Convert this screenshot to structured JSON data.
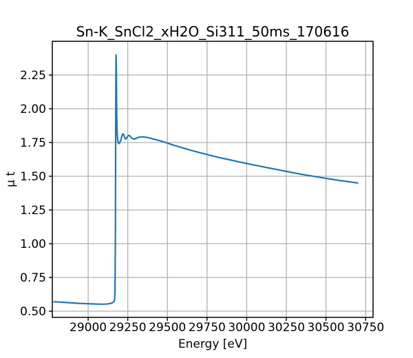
{
  "figure": {
    "background": "#ffffff"
  },
  "chart_data": {
    "type": "line",
    "title": "Sn-K_SnCl2_xH2O_Si311_50ms_170616",
    "xlabel": "Energy [eV]",
    "ylabel": "μ t",
    "xlim": [
      28774,
      30797
    ],
    "ylim": [
      0.454,
      2.5
    ],
    "xticks": [
      29000,
      29250,
      29500,
      29750,
      30000,
      30250,
      30500,
      30750
    ],
    "xtick_labels": [
      "29000",
      "29250",
      "29500",
      "29750",
      "30000",
      "30250",
      "30500",
      "30750"
    ],
    "ytick_values": [
      0.5,
      0.75,
      1.0,
      1.25,
      1.5,
      1.75,
      2.0,
      2.25
    ],
    "ytick_labels": [
      "0.50",
      "0.75",
      "1.00",
      "1.25",
      "1.50",
      "1.75",
      "2.00",
      "2.25"
    ],
    "grid": true,
    "legend": false,
    "line_color": "#1f77b4",
    "grid_color": "#b0b0b0",
    "axis_color": "#000000",
    "text_color": "#000000",
    "series": [
      {
        "points": [
          [
            28785,
            0.57
          ],
          [
            28860,
            0.564
          ],
          [
            28940,
            0.558
          ],
          [
            29020,
            0.554
          ],
          [
            29080,
            0.552
          ],
          [
            29115,
            0.5525
          ],
          [
            29140,
            0.557
          ],
          [
            29155,
            0.563
          ],
          [
            29163,
            0.572
          ],
          [
            29167,
            0.585
          ],
          [
            29169,
            0.64
          ],
          [
            29170,
            0.72
          ],
          [
            29171,
            0.86
          ],
          [
            29172,
            1.1
          ],
          [
            29173,
            1.5
          ],
          [
            29174,
            1.95
          ],
          [
            29175,
            2.25
          ],
          [
            29176,
            2.4
          ],
          [
            29177,
            2.37
          ],
          [
            29178,
            2.22
          ],
          [
            29180,
            1.98
          ],
          [
            29182,
            1.85
          ],
          [
            29185,
            1.78
          ],
          [
            29189,
            1.75
          ],
          [
            29194,
            1.742
          ],
          [
            29200,
            1.75
          ],
          [
            29207,
            1.77
          ],
          [
            29213,
            1.798
          ],
          [
            29219,
            1.815
          ],
          [
            29225,
            1.806
          ],
          [
            29230,
            1.787
          ],
          [
            29235,
            1.776
          ],
          [
            29241,
            1.78
          ],
          [
            29248,
            1.794
          ],
          [
            29255,
            1.803
          ],
          [
            29262,
            1.8
          ],
          [
            29271,
            1.787
          ],
          [
            29282,
            1.777
          ],
          [
            29294,
            1.776
          ],
          [
            29307,
            1.783
          ],
          [
            29322,
            1.79
          ],
          [
            29340,
            1.792
          ],
          [
            29360,
            1.79
          ],
          [
            29385,
            1.784
          ],
          [
            29412,
            1.776
          ],
          [
            29440,
            1.767
          ],
          [
            29470,
            1.757
          ],
          [
            29500,
            1.746
          ],
          [
            29540,
            1.73
          ],
          [
            29580,
            1.716
          ],
          [
            29620,
            1.702
          ],
          [
            29660,
            1.688
          ],
          [
            29700,
            1.676
          ],
          [
            29740,
            1.664
          ],
          [
            29780,
            1.652
          ],
          [
            29820,
            1.641
          ],
          [
            29860,
            1.63
          ],
          [
            29900,
            1.62
          ],
          [
            29945,
            1.608
          ],
          [
            29990,
            1.597
          ],
          [
            30040,
            1.585
          ],
          [
            30090,
            1.573
          ],
          [
            30140,
            1.561
          ],
          [
            30190,
            1.55
          ],
          [
            30240,
            1.538
          ],
          [
            30290,
            1.527
          ],
          [
            30340,
            1.516
          ],
          [
            30390,
            1.506
          ],
          [
            30440,
            1.496
          ],
          [
            30490,
            1.486
          ],
          [
            30540,
            1.477
          ],
          [
            30590,
            1.468
          ],
          [
            30645,
            1.459
          ],
          [
            30700,
            1.45
          ]
        ]
      }
    ]
  }
}
